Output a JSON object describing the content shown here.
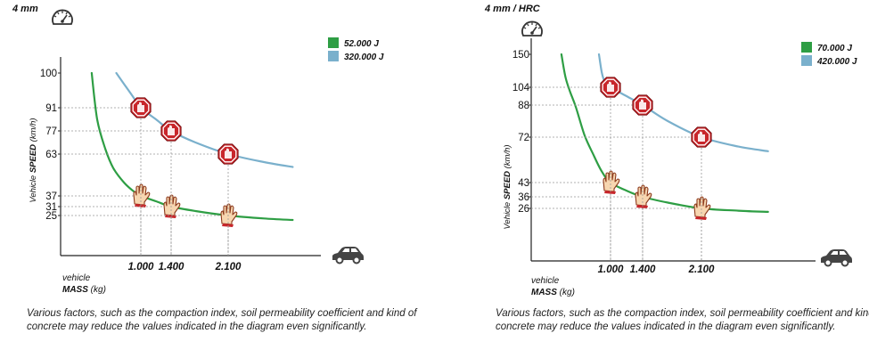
{
  "chart_data": [
    {
      "type": "line",
      "title": "4 mm",
      "ylabel": "Vehicle SPEED (km/h)",
      "ylabel_prefix": "Vehicle ",
      "ylabel_bold": "SPEED",
      "ylabel_unit": " (km/h)",
      "xlabel": "vehicle MASS (kg)",
      "xlabel_line1": "vehicle",
      "xlabel_bold": "MASS",
      "xlabel_unit": " (kg)",
      "y_ticks": [
        "100",
        "91",
        "77",
        "63",
        "37",
        "31",
        "25"
      ],
      "y_tick_values": [
        100,
        91,
        77,
        63,
        37,
        31,
        25
      ],
      "x_ticks": [
        "1.000",
        "1.400",
        "2.100"
      ],
      "x_tick_values": [
        1000,
        1400,
        2100
      ],
      "xlim": [
        0,
        3200
      ],
      "ylim": [
        0,
        110
      ],
      "series": [
        {
          "name": "52.000 J",
          "color": "#2e9e44",
          "x": [
            100,
            200,
            350,
            500,
            700,
            900,
            1000,
            1200,
            1400,
            1700,
            2100,
            2600,
            3000
          ],
          "y": [
            100,
            84,
            66,
            54,
            45,
            39,
            37,
            34,
            31,
            28,
            25,
            23,
            22
          ],
          "marker": "hand",
          "marker_x": [
            1000,
            1400,
            2100
          ]
        },
        {
          "name": "320.000 J",
          "color": "#7ab0cc",
          "x": [
            550,
            700,
            850,
            1000,
            1200,
            1400,
            1700,
            2100,
            2600,
            3000
          ],
          "y": [
            100,
            97,
            94,
            91,
            84,
            77,
            70,
            63,
            58,
            55
          ],
          "marker": "stop",
          "marker_x": [
            1000,
            1400,
            2100
          ]
        }
      ],
      "caption": "Various factors, such as the compaction index, soil permeability coefficient and kind of concrete may reduce the values indicated in the diagram even significantly."
    },
    {
      "type": "line",
      "title": "4 mm / HRC",
      "ylabel": "Vehicle SPEED (km/h)",
      "ylabel_prefix": "Vehicle ",
      "ylabel_bold": "SPEED",
      "ylabel_unit": " (km/h)",
      "xlabel": "vehicle MASS (kg)",
      "xlabel_line1": "vehicle",
      "xlabel_bold": "MASS",
      "xlabel_unit": " (kg)",
      "y_ticks": [
        "150",
        "104",
        "88",
        "72",
        "43",
        "36",
        "26"
      ],
      "y_tick_values": [
        150,
        104,
        88,
        72,
        43,
        36,
        26
      ],
      "x_ticks": [
        "1.000",
        "1.400",
        "2.100"
      ],
      "x_tick_values": [
        1000,
        1400,
        2100
      ],
      "xlim": [
        0,
        3200
      ],
      "ylim": [
        0,
        150
      ],
      "series": [
        {
          "name": "70.000 J",
          "color": "#2e9e44",
          "x": [
            150,
            220,
            300,
            400,
            550,
            700,
            850,
            1000,
            1200,
            1400,
            1700,
            2100,
            2600,
            3000
          ],
          "y": [
            150,
            118,
            100,
            87,
            73,
            61,
            50,
            43,
            39,
            36,
            31,
            26,
            24,
            23
          ],
          "marker": "hand",
          "marker_x": [
            1000,
            1400,
            2100
          ]
        },
        {
          "name": "420.000 J",
          "color": "#7ab0cc",
          "x": [
            800,
            850,
            900,
            1000,
            1200,
            1400,
            1700,
            2100,
            2600,
            3000
          ],
          "y": [
            150,
            124,
            112,
            104,
            96,
            88,
            80,
            72,
            66,
            63
          ],
          "marker": "stop",
          "marker_x": [
            1000,
            1400,
            2100
          ]
        }
      ],
      "caption": "Various factors, such as the compaction index, soil permeability coefficient and kind of concrete may reduce the values indicated in the diagram even significantly."
    }
  ],
  "icons": {
    "speedometer": "speedometer-icon",
    "car": "car-icon",
    "hand": "hand-stop-icon",
    "stop": "stop-sign-icon"
  }
}
